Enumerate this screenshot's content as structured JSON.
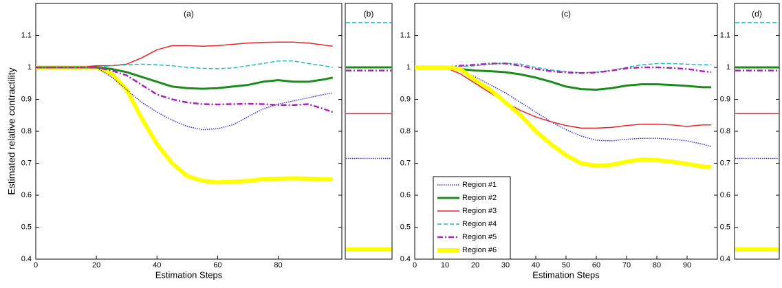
{
  "chart_data": [
    {
      "type": "line",
      "title": "(a)",
      "ylabel": "Estimated relative contractility",
      "xlabel": "Estimation Steps",
      "xlim": [
        0,
        101
      ],
      "xticks": [
        0,
        20,
        40,
        60,
        80
      ],
      "ylim": [
        0.4,
        1.2
      ],
      "yticks": [
        0.4,
        0.5,
        0.6,
        0.7,
        0.8,
        0.9,
        1,
        1.1
      ],
      "x": [
        0,
        5,
        10,
        15,
        20,
        25,
        30,
        35,
        40,
        45,
        50,
        55,
        60,
        65,
        70,
        75,
        80,
        85,
        90,
        95,
        98
      ],
      "series": [
        {
          "color": "#ffff00",
          "linestyle": "solid",
          "linewidth": 6,
          "values": [
            1,
            1,
            1,
            1,
            1,
            0.98,
            0.93,
            0.84,
            0.76,
            0.7,
            0.66,
            0.645,
            0.64,
            0.642,
            0.645,
            0.65,
            0.652,
            0.653,
            0.652,
            0.65,
            0.65
          ]
        },
        {
          "color": "#3333cc",
          "linestyle": "dotted",
          "linewidth": 1.5,
          "values": [
            1,
            1,
            1,
            1,
            1,
            0.97,
            0.93,
            0.89,
            0.86,
            0.835,
            0.815,
            0.805,
            0.808,
            0.82,
            0.845,
            0.87,
            0.885,
            0.895,
            0.905,
            0.915,
            0.92
          ]
        },
        {
          "color": "#1a8c1a",
          "linestyle": "solid",
          "linewidth": 3,
          "values": [
            1,
            1,
            1,
            1,
            1,
            0.995,
            0.985,
            0.97,
            0.955,
            0.94,
            0.935,
            0.933,
            0.935,
            0.94,
            0.945,
            0.955,
            0.96,
            0.955,
            0.955,
            0.962,
            0.968
          ]
        },
        {
          "color": "#ee2222",
          "linestyle": "solid",
          "linewidth": 1.5,
          "values": [
            1,
            1,
            1,
            1,
            1.005,
            1.005,
            1.01,
            1.03,
            1.055,
            1.068,
            1.068,
            1.066,
            1.068,
            1.072,
            1.076,
            1.078,
            1.079,
            1.079,
            1.076,
            1.07,
            1.066
          ]
        },
        {
          "color": "#22bbbb",
          "linestyle": "dashed",
          "linewidth": 1.5,
          "values": [
            1,
            1,
            1,
            1,
            1,
            1.005,
            1.008,
            1.01,
            1.008,
            1.005,
            1,
            0.997,
            0.996,
            0.998,
            1.005,
            1.012,
            1.02,
            1.02,
            1.012,
            1.005,
            1
          ]
        },
        {
          "color": "#aa22bb",
          "linestyle": "dashdot",
          "linewidth": 2.5,
          "values": [
            1,
            1,
            1,
            1,
            1,
            0.99,
            0.975,
            0.945,
            0.915,
            0.9,
            0.89,
            0.885,
            0.884,
            0.885,
            0.886,
            0.885,
            0.882,
            0.882,
            0.885,
            0.87,
            0.86
          ]
        }
      ]
    },
    {
      "type": "hline",
      "title": "(b)",
      "ylim": [
        0.4,
        1.2
      ],
      "series": [
        {
          "color": "#ffff00",
          "linestyle": "solid",
          "linewidth": 6,
          "values": [
            0.43
          ]
        },
        {
          "color": "#3333cc",
          "linestyle": "dotted",
          "linewidth": 1.5,
          "values": [
            0.715
          ]
        },
        {
          "color": "#1a8c1a",
          "linestyle": "solid",
          "linewidth": 3,
          "values": [
            1.0
          ]
        },
        {
          "color": "#ee2222",
          "linestyle": "solid",
          "linewidth": 1.5,
          "values": [
            0.855
          ]
        },
        {
          "color": "#22bbbb",
          "linestyle": "dashed",
          "linewidth": 1.5,
          "values": [
            1.14
          ]
        },
        {
          "color": "#aa22bb",
          "linestyle": "dashdot",
          "linewidth": 2.5,
          "values": [
            0.99
          ]
        }
      ]
    },
    {
      "type": "line",
      "title": "(c)",
      "xlabel": "Estimation Steps",
      "legend": "lower left",
      "xlim": [
        0,
        100
      ],
      "xticks": [
        0,
        10,
        20,
        30,
        40,
        50,
        60,
        70,
        80,
        90
      ],
      "ylim": [
        0.4,
        1.2
      ],
      "yticks": [
        0.4,
        0.5,
        0.6,
        0.7,
        0.8,
        0.9,
        1,
        1.1
      ],
      "x": [
        0,
        5,
        10,
        15,
        20,
        25,
        30,
        35,
        40,
        45,
        50,
        55,
        60,
        65,
        70,
        75,
        80,
        85,
        90,
        95,
        98
      ],
      "series": [
        {
          "name": "Region #1",
          "color": "#3333cc",
          "linestyle": "dotted",
          "linewidth": 1.5,
          "values": [
            1,
            1,
            1,
            0.99,
            0.97,
            0.945,
            0.92,
            0.89,
            0.86,
            0.83,
            0.805,
            0.785,
            0.772,
            0.77,
            0.775,
            0.778,
            0.778,
            0.775,
            0.77,
            0.76,
            0.752
          ]
        },
        {
          "name": "Region #2",
          "color": "#1a8c1a",
          "linestyle": "solid",
          "linewidth": 3,
          "values": [
            1,
            1,
            1,
            0.995,
            0.99,
            0.988,
            0.985,
            0.978,
            0.968,
            0.955,
            0.94,
            0.932,
            0.93,
            0.935,
            0.943,
            0.947,
            0.947,
            0.945,
            0.942,
            0.938,
            0.938
          ]
        },
        {
          "name": "Region #3",
          "color": "#ee2222",
          "linestyle": "solid",
          "linewidth": 1.5,
          "values": [
            1,
            1,
            1,
            0.98,
            0.95,
            0.92,
            0.89,
            0.865,
            0.845,
            0.83,
            0.818,
            0.81,
            0.81,
            0.812,
            0.818,
            0.822,
            0.822,
            0.82,
            0.815,
            0.82,
            0.82
          ]
        },
        {
          "name": "Region #4",
          "color": "#22bbbb",
          "linestyle": "dashed",
          "linewidth": 1.5,
          "values": [
            1,
            1,
            1,
            1.003,
            1.005,
            1.01,
            1.013,
            1.01,
            1,
            0.992,
            0.987,
            0.983,
            0.985,
            0.99,
            1,
            1.008,
            1.012,
            1.012,
            1.01,
            1.008,
            1.008
          ]
        },
        {
          "name": "Region #5",
          "color": "#aa22bb",
          "linestyle": "dashdot",
          "linewidth": 2.5,
          "values": [
            1,
            1,
            1,
            1.005,
            1.008,
            1.012,
            1.012,
            1.005,
            0.995,
            0.988,
            0.984,
            0.982,
            0.984,
            0.99,
            0.997,
            1,
            1,
            0.998,
            0.995,
            0.988,
            0.985
          ]
        },
        {
          "name": "Region #6",
          "color": "#ffff00",
          "linestyle": "solid",
          "linewidth": 6,
          "values": [
            1,
            1,
            1,
            0.995,
            0.96,
            0.93,
            0.89,
            0.85,
            0.8,
            0.76,
            0.725,
            0.7,
            0.692,
            0.695,
            0.705,
            0.712,
            0.71,
            0.705,
            0.698,
            0.69,
            0.688
          ]
        }
      ]
    },
    {
      "type": "hline",
      "title": "(d)",
      "ylim": [
        0.4,
        1.2
      ],
      "yticks": [
        0.4,
        0.5,
        0.6,
        0.7,
        0.8,
        0.9,
        1,
        1.1
      ],
      "series": [
        {
          "color": "#ffff00",
          "linestyle": "solid",
          "linewidth": 6,
          "values": [
            0.43
          ]
        },
        {
          "color": "#3333cc",
          "linestyle": "dotted",
          "linewidth": 1.5,
          "values": [
            0.715
          ]
        },
        {
          "color": "#1a8c1a",
          "linestyle": "solid",
          "linewidth": 3,
          "values": [
            1.0
          ]
        },
        {
          "color": "#ee2222",
          "linestyle": "solid",
          "linewidth": 1.5,
          "values": [
            0.855
          ]
        },
        {
          "color": "#22bbbb",
          "linestyle": "dashed",
          "linewidth": 1.5,
          "values": [
            1.14
          ]
        },
        {
          "color": "#aa22bb",
          "linestyle": "dashdot",
          "linewidth": 2.5,
          "values": [
            0.99
          ]
        }
      ]
    }
  ]
}
